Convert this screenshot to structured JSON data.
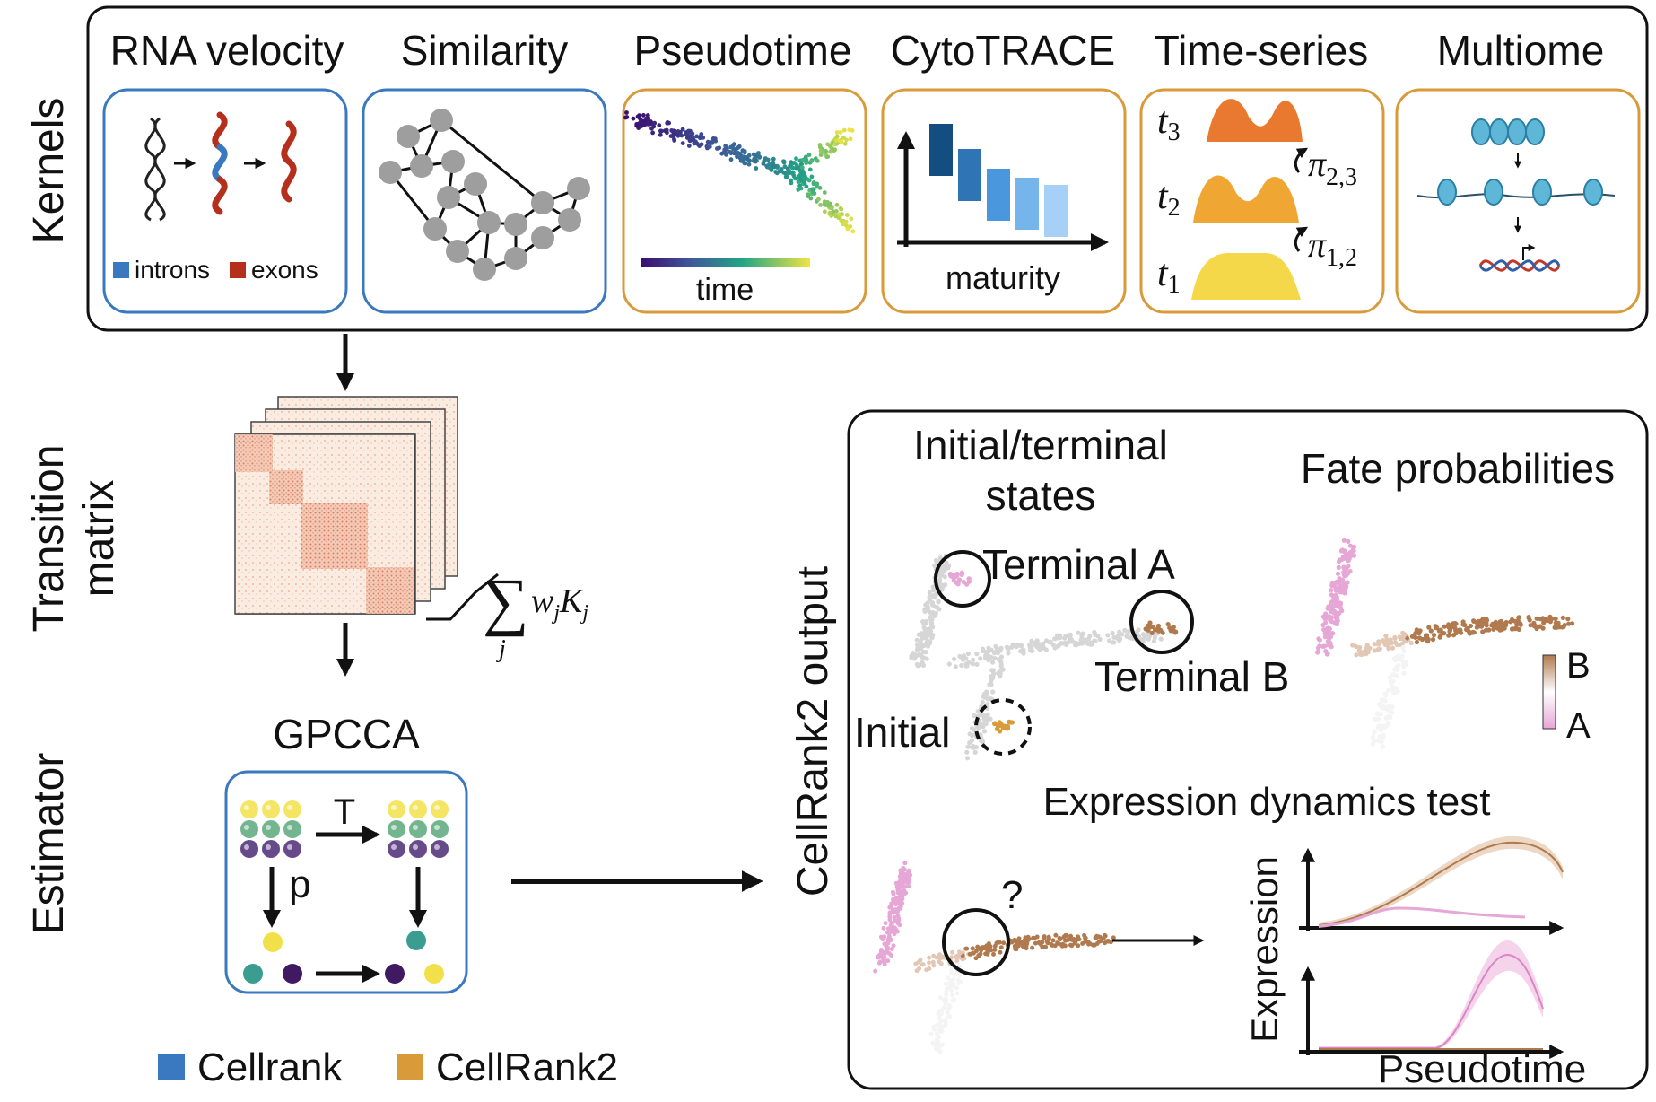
{
  "kernels": {
    "row_label": "Kernels",
    "items": [
      {
        "title": "RNA velocity",
        "family": "Cellrank",
        "legend": [
          "introns",
          "exons"
        ]
      },
      {
        "title": "Similarity",
        "family": "Cellrank"
      },
      {
        "title": "Pseudotime",
        "family": "CellRank2",
        "caption": "time"
      },
      {
        "title": "CytoTRACE",
        "family": "CellRank2",
        "caption": "maturity"
      },
      {
        "title": "Time-series",
        "family": "CellRank2",
        "t3": "t",
        "t3_sub": "3",
        "t2": "t",
        "t2_sub": "2",
        "t1": "t",
        "t1_sub": "1",
        "pi23": "π",
        "pi23_sub": "2,3",
        "pi12": "π",
        "pi12_sub": "1,2"
      },
      {
        "title": "Multiome",
        "family": "CellRank2"
      }
    ]
  },
  "transition": {
    "row_label_1": "Transition",
    "row_label_2": "matrix",
    "formula_w": "w",
    "formula_j": "j",
    "formula_K": "K",
    "formula_index": "j"
  },
  "estimator": {
    "row_label": "Estimator",
    "title": "GPCCA",
    "T": "T",
    "p": "p"
  },
  "legend": {
    "items": [
      {
        "label": "Cellrank",
        "color": "#3a78bf"
      },
      {
        "label": "CellRank2",
        "color": "#d99a3a"
      }
    ]
  },
  "output": {
    "side_label": "CellRank2 output",
    "states_title_1": "Initial/terminal",
    "states_title_2": "states",
    "terminal_a": "Terminal A",
    "terminal_b": "Terminal B",
    "initial": "Initial",
    "fate_title": "Fate probabilities",
    "fate_b": "B",
    "fate_a": "A",
    "dyn_title": "Expression dynamics test",
    "question": "?",
    "ylabel": "Expression",
    "xlabel": "Pseudotime"
  },
  "colors": {
    "cellrank": "#3a78bf",
    "cellrank2": "#d99a3a",
    "exon": "#b5301c",
    "pink": "#e6a6d6",
    "brown": "#b07a4e",
    "gray": "#cfcfcf"
  }
}
